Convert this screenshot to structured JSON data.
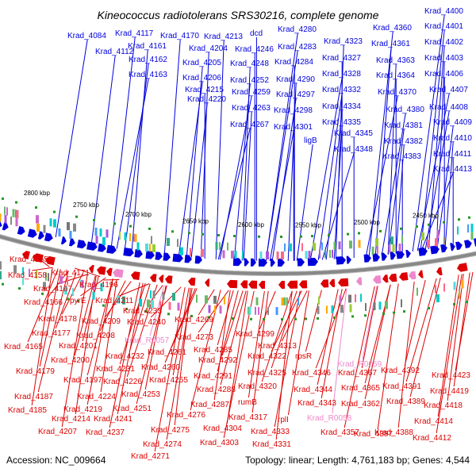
{
  "title": "Kineococcus radiotolerans SRS30216, complete genome",
  "footer": {
    "accession": "Accession: NC_009664",
    "summary": "Topology: linear; Length: 4,761,183 bp; Genes: 4,544"
  },
  "colors": {
    "forward": "#0000dd",
    "reverse": "#dd0000",
    "rna": "#ee88cc",
    "backbone": "#888888",
    "tick_dot": "#229922"
  },
  "scale_ticks": [
    "2800 kbp",
    "2750 kbp",
    "2700 kbp",
    "2650 kbp",
    "2600 kbp",
    "2550 kbp",
    "2500 kbp",
    "2450 kbp"
  ],
  "forward_labels": [
    "Krad_4084",
    "Krad_4117",
    "Krad_4170",
    "Krad_4213",
    "dcd",
    "Krad_4280",
    "Krad_4112",
    "Krad_4161",
    "Krad_4204",
    "Krad_4246",
    "Krad_4283",
    "Krad_4162",
    "Krad_4205",
    "Krad_4248",
    "Krad_4284",
    "Krad_4163",
    "Krad_4206",
    "Krad_4252",
    "Krad_4290",
    "Krad_4215",
    "Krad_4259",
    "Krad_4297",
    "Krad_4220",
    "Krad_4263",
    "Krad_4298",
    "Krad_4267",
    "Krad_4301",
    "ligB",
    "Krad_4323",
    "Krad_4327",
    "Krad_4328",
    "Krad_4332",
    "Krad_4334",
    "Krad_4335",
    "Krad_4345",
    "Krad_4348",
    "Krad_4360",
    "Krad_4361",
    "Krad_4363",
    "Krad_4364",
    "Krad_4370",
    "Krad_4380",
    "Krad_4381",
    "Krad_4382",
    "Krad_4383",
    "Krad_4400",
    "Krad_4401",
    "Krad_4402",
    "Krad_4403",
    "Krad_4406",
    "Krad_4407",
    "Krad_4408",
    "Krad_4409",
    "Krad_4410",
    "Krad_4411",
    "Krad_4413"
  ],
  "reverse_labels": [
    "Krad_4155",
    "Krad_4158",
    "Krad_4171",
    "Krad_4167",
    "Krad_4196",
    "Krad_4166",
    "pyrE",
    "Krad_4211",
    "Krad_4233",
    "Krad_4178",
    "Krad_4209",
    "Krad_4240",
    "Krad_4269",
    "Krad_4177",
    "Krad_4208",
    "Krad_4165",
    "Krad_4201",
    "Krad_4232",
    "Krad_4261",
    "Krad_4273",
    "Krad_4299",
    "Krad_4200",
    "Krad_4231",
    "Krad_4260",
    "Krad_4285",
    "Krad_4292",
    "Krad_4313",
    "Krad_4322",
    "rpsR",
    "Krad_4179",
    "Krad_4197",
    "Krad_4226",
    "Krad_4255",
    "Krad_4291",
    "Krad_4325",
    "Krad_4346",
    "Krad_4367",
    "Krad_4392",
    "Krad_4423",
    "Krad_4187",
    "Krad_4224",
    "Krad_4253",
    "Krad_4288",
    "Krad_4320",
    "rumB",
    "Krad_4344",
    "Krad_4365",
    "Krad_4391",
    "Krad_4419",
    "Krad_4185",
    "Krad_4219",
    "Krad_4251",
    "Krad_4287",
    "Krad_4343",
    "Krad_4362",
    "Krad_4389",
    "Krad_4418",
    "Krad_4214",
    "Krad_4241",
    "Krad_4276",
    "Krad_4317",
    "rplI",
    "Krad_4207",
    "Krad_4237",
    "Krad_4275",
    "Krad_4304",
    "Krad_4333",
    "Krad_4357",
    "Krad_4388",
    "Krad_4414",
    "Krad_4274",
    "Krad_4303",
    "Krad_4331",
    "Krad_4387",
    "Krad_4412",
    "Krad_4271"
  ],
  "rna_labels": [
    "Krad_R0057",
    "Krad_R0059",
    "Krad_R0058"
  ]
}
